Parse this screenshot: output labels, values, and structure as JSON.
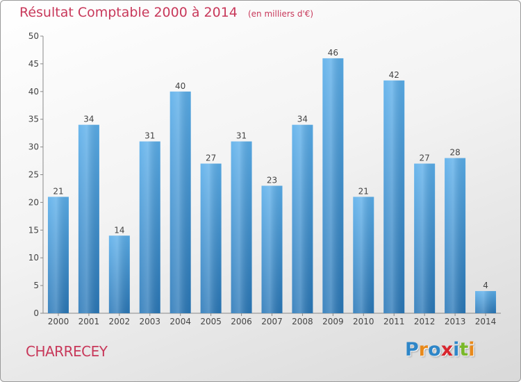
{
  "title": "Résultat Comptable 2000 à 2014",
  "subtitle": "(en milliers d'€)",
  "commune": "CHARRECEY",
  "logo": {
    "text": "Proxiti",
    "letters": [
      {
        "ch": "P",
        "color": "#2e86c8"
      },
      {
        "ch": "r",
        "color": "#e8891a"
      },
      {
        "ch": "o",
        "color": "#2e86c8"
      },
      {
        "ch": "x",
        "color": "#d8262e"
      },
      {
        "ch": "i",
        "color": "#2e86c8"
      },
      {
        "ch": "t",
        "color": "#7ab829"
      },
      {
        "ch": "i",
        "color": "#e8891a"
      }
    ]
  },
  "chart_data": {
    "type": "bar",
    "title": "Résultat Comptable 2000 à 2014",
    "subtitle": "(en milliers d'€)",
    "categories": [
      "2000",
      "2001",
      "2002",
      "2003",
      "2004",
      "2005",
      "2006",
      "2007",
      "2008",
      "2009",
      "2010",
      "2011",
      "2012",
      "2013",
      "2014"
    ],
    "values": [
      21,
      34,
      14,
      31,
      40,
      27,
      31,
      23,
      34,
      46,
      21,
      42,
      27,
      28,
      4
    ],
    "ylim": [
      0,
      50
    ],
    "yticks": [
      0,
      5,
      10,
      15,
      20,
      25,
      30,
      35,
      40,
      45,
      50
    ],
    "grid": false,
    "legend": "none",
    "bar_color": "#4a9fe0"
  }
}
